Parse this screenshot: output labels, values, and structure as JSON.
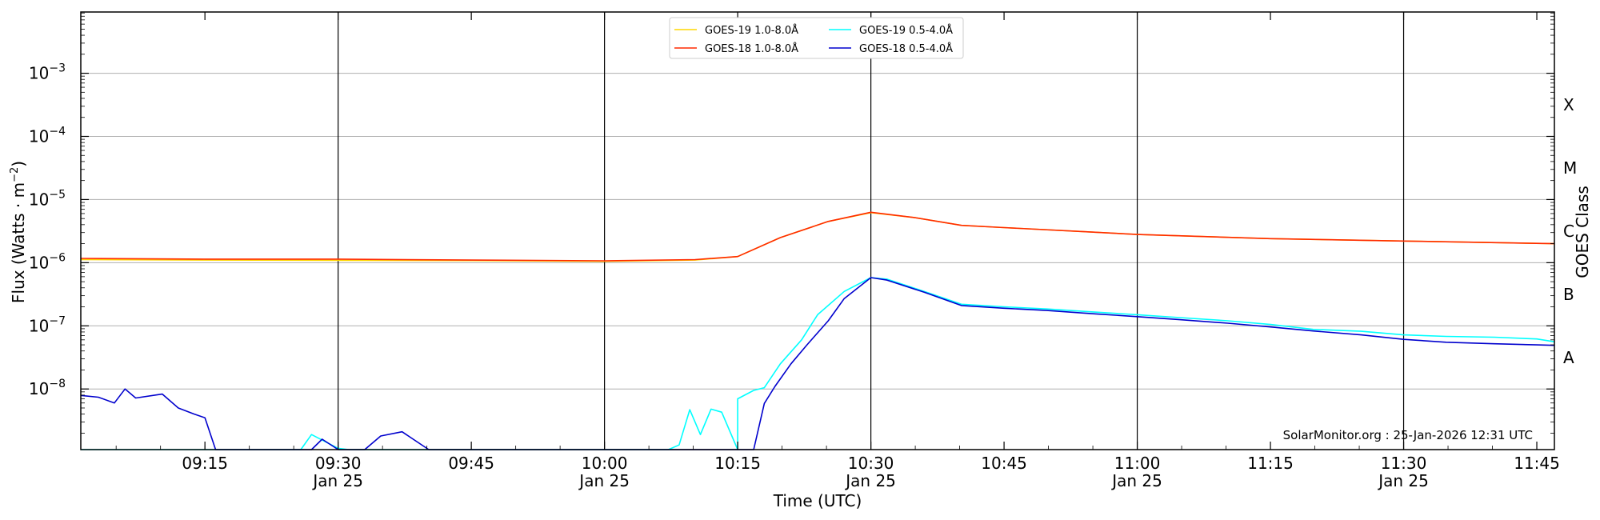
{
  "chart_data": {
    "type": "line",
    "xlabel": "Time (UTC)",
    "ylabel_main": "Flux (Watts · m",
    "ylabel_sup": "−2",
    "ylabel_close": ")",
    "right_label": "GOES Class",
    "credit": "SolarMonitor.org : 25-Jan-2026 12:31 UTC",
    "x_range_minutes": [
      9.017,
      11.783
    ],
    "y_log_range": [
      -8.96,
      -6.03
    ],
    "y_log_range_exp": [
      -8.96,
      -2.03
    ],
    "grid_y": true,
    "legend_position": "top-center",
    "x_ticks": [
      {
        "hour": 9.25,
        "label": "09:15",
        "sub": ""
      },
      {
        "hour": 9.5,
        "label": "09:30",
        "sub": "Jan 25"
      },
      {
        "hour": 9.75,
        "label": "09:45",
        "sub": ""
      },
      {
        "hour": 10.0,
        "label": "10:00",
        "sub": "Jan 25"
      },
      {
        "hour": 10.25,
        "label": "10:15",
        "sub": ""
      },
      {
        "hour": 10.5,
        "label": "10:30",
        "sub": "Jan 25"
      },
      {
        "hour": 10.75,
        "label": "10:45",
        "sub": ""
      },
      {
        "hour": 11.0,
        "label": "11:00",
        "sub": "Jan 25"
      },
      {
        "hour": 11.25,
        "label": "11:15",
        "sub": ""
      },
      {
        "hour": 11.5,
        "label": "11:30",
        "sub": "Jan 25"
      },
      {
        "hour": 11.75,
        "label": "11:45",
        "sub": ""
      }
    ],
    "y_ticks": [
      {
        "exp": -8,
        "label": "10",
        "sup": "−8"
      },
      {
        "exp": -7,
        "label": "10",
        "sup": "−7"
      },
      {
        "exp": -6,
        "label": "10",
        "sup": "−6"
      },
      {
        "exp": -5,
        "label": "10",
        "sup": "−5"
      },
      {
        "exp": -4,
        "label": "10",
        "sup": "−4"
      },
      {
        "exp": -3,
        "label": "10",
        "sup": "−3"
      }
    ],
    "goes_classes": [
      {
        "label": "X",
        "exp": -3.5
      },
      {
        "label": "M",
        "exp": -4.5
      },
      {
        "label": "C",
        "exp": -5.5
      },
      {
        "label": "B",
        "exp": -6.5
      },
      {
        "label": "A",
        "exp": -7.5
      }
    ],
    "series": [
      {
        "name": "GOES-19 1.0-8.0Å",
        "color": "#FFD700",
        "points": [
          [
            9.017,
            1.12e-06
          ],
          [
            9.25,
            1.1e-06
          ],
          [
            9.5,
            1.09e-06
          ],
          [
            9.75,
            1.08e-06
          ],
          [
            10.0,
            1.05e-06
          ],
          [
            10.17,
            1.1e-06
          ],
          [
            10.25,
            1.25e-06
          ],
          [
            10.33,
            2.5e-06
          ],
          [
            10.42,
            4.5e-06
          ],
          [
            10.5,
            6.2e-06
          ],
          [
            10.58,
            5.2e-06
          ],
          [
            10.67,
            3.9e-06
          ],
          [
            10.75,
            3.6e-06
          ],
          [
            10.9,
            3.1e-06
          ],
          [
            11.0,
            2.8e-06
          ],
          [
            11.25,
            2.4e-06
          ],
          [
            11.5,
            2.2e-06
          ],
          [
            11.783,
            2e-06
          ]
        ]
      },
      {
        "name": "GOES-19 0.5-4.0Å",
        "color": "#00FFFF",
        "points": [
          [
            9.017,
            1e-09
          ],
          [
            9.43,
            1e-09
          ],
          [
            9.45,
            1.9e-09
          ],
          [
            9.5,
            1.15e-09
          ],
          [
            9.52,
            1e-09
          ],
          [
            10.25,
            1e-09
          ],
          [
            10.25,
            1e-09
          ],
          [
            10.12,
            1e-09
          ],
          [
            10.14,
            1.3e-09
          ],
          [
            10.16,
            4.7e-09
          ],
          [
            10.18,
            1.9e-09
          ],
          [
            10.2,
            4.8e-09
          ],
          [
            10.22,
            4.3e-09
          ],
          [
            10.25,
            7e-09
          ],
          [
            10.28,
            9.5e-09
          ],
          [
            10.3,
            1.05e-08
          ],
          [
            10.33,
            2.5e-08
          ],
          [
            10.37,
            6e-08
          ],
          [
            10.4,
            1.5e-07
          ],
          [
            10.45,
            3.5e-07
          ],
          [
            10.5,
            5.8e-07
          ],
          [
            10.53,
            5.5e-07
          ],
          [
            10.6,
            3.5e-07
          ],
          [
            10.67,
            2.2e-07
          ],
          [
            10.75,
            2e-07
          ],
          [
            10.83,
            1.85e-07
          ],
          [
            10.92,
            1.65e-07
          ],
          [
            11.0,
            1.5e-07
          ],
          [
            11.08,
            1.35e-07
          ],
          [
            11.17,
            1.2e-07
          ],
          [
            11.25,
            1.05e-07
          ],
          [
            11.33,
            8.8e-08
          ],
          [
            11.42,
            8.2e-08
          ],
          [
            11.5,
            7.2e-08
          ],
          [
            11.58,
            6.8e-08
          ],
          [
            11.67,
            6.6e-08
          ],
          [
            11.75,
            6.2e-08
          ],
          [
            11.783,
            5.6e-08
          ]
        ]
      },
      {
        "name": "GOES-18 1.0-8.0Å",
        "color": "#FF2A00",
        "points": [
          [
            9.017,
            1.17e-06
          ],
          [
            9.25,
            1.14e-06
          ],
          [
            9.5,
            1.14e-06
          ],
          [
            9.75,
            1.1e-06
          ],
          [
            10.0,
            1.07e-06
          ],
          [
            10.17,
            1.12e-06
          ],
          [
            10.25,
            1.25e-06
          ],
          [
            10.33,
            2.5e-06
          ],
          [
            10.42,
            4.5e-06
          ],
          [
            10.5,
            6.3e-06
          ],
          [
            10.58,
            5.2e-06
          ],
          [
            10.67,
            3.9e-06
          ],
          [
            10.75,
            3.6e-06
          ],
          [
            10.9,
            3.1e-06
          ],
          [
            11.0,
            2.8e-06
          ],
          [
            11.25,
            2.4e-06
          ],
          [
            11.5,
            2.2e-06
          ],
          [
            11.783,
            2e-06
          ]
        ]
      },
      {
        "name": "GOES-18 0.5-4.0Å",
        "color": "#0000CD",
        "points": [
          [
            9.017,
            7.9e-09
          ],
          [
            9.05,
            7.4e-09
          ],
          [
            9.08,
            6e-09
          ],
          [
            9.1,
            1e-08
          ],
          [
            9.12,
            7.2e-09
          ],
          [
            9.17,
            8.3e-09
          ],
          [
            9.2,
            5e-09
          ],
          [
            9.23,
            4e-09
          ],
          [
            9.25,
            3.5e-09
          ],
          [
            9.27,
            1e-09
          ],
          [
            9.45,
            1e-09
          ],
          [
            9.47,
            1.6e-09
          ],
          [
            9.5,
            1e-09
          ],
          [
            9.55,
            1e-09
          ],
          [
            9.58,
            1.8e-09
          ],
          [
            9.62,
            2.1e-09
          ],
          [
            9.67,
            1e-09
          ],
          [
            10.28,
            1e-09
          ],
          [
            10.3,
            5.9e-09
          ],
          [
            10.32,
            1.1e-08
          ],
          [
            10.35,
            2.5e-08
          ],
          [
            10.38,
            5e-08
          ],
          [
            10.42,
            1.2e-07
          ],
          [
            10.45,
            2.7e-07
          ],
          [
            10.5,
            5.8e-07
          ],
          [
            10.53,
            5.3e-07
          ],
          [
            10.6,
            3.4e-07
          ],
          [
            10.67,
            2.1e-07
          ],
          [
            10.75,
            1.9e-07
          ],
          [
            10.83,
            1.75e-07
          ],
          [
            10.92,
            1.55e-07
          ],
          [
            11.0,
            1.4e-07
          ],
          [
            11.08,
            1.25e-07
          ],
          [
            11.17,
            1.1e-07
          ],
          [
            11.25,
            9.6e-08
          ],
          [
            11.33,
            8.3e-08
          ],
          [
            11.42,
            7.2e-08
          ],
          [
            11.5,
            6.1e-08
          ],
          [
            11.58,
            5.5e-08
          ],
          [
            11.67,
            5.2e-08
          ],
          [
            11.75,
            5e-08
          ],
          [
            11.783,
            4.9e-08
          ]
        ]
      }
    ]
  }
}
